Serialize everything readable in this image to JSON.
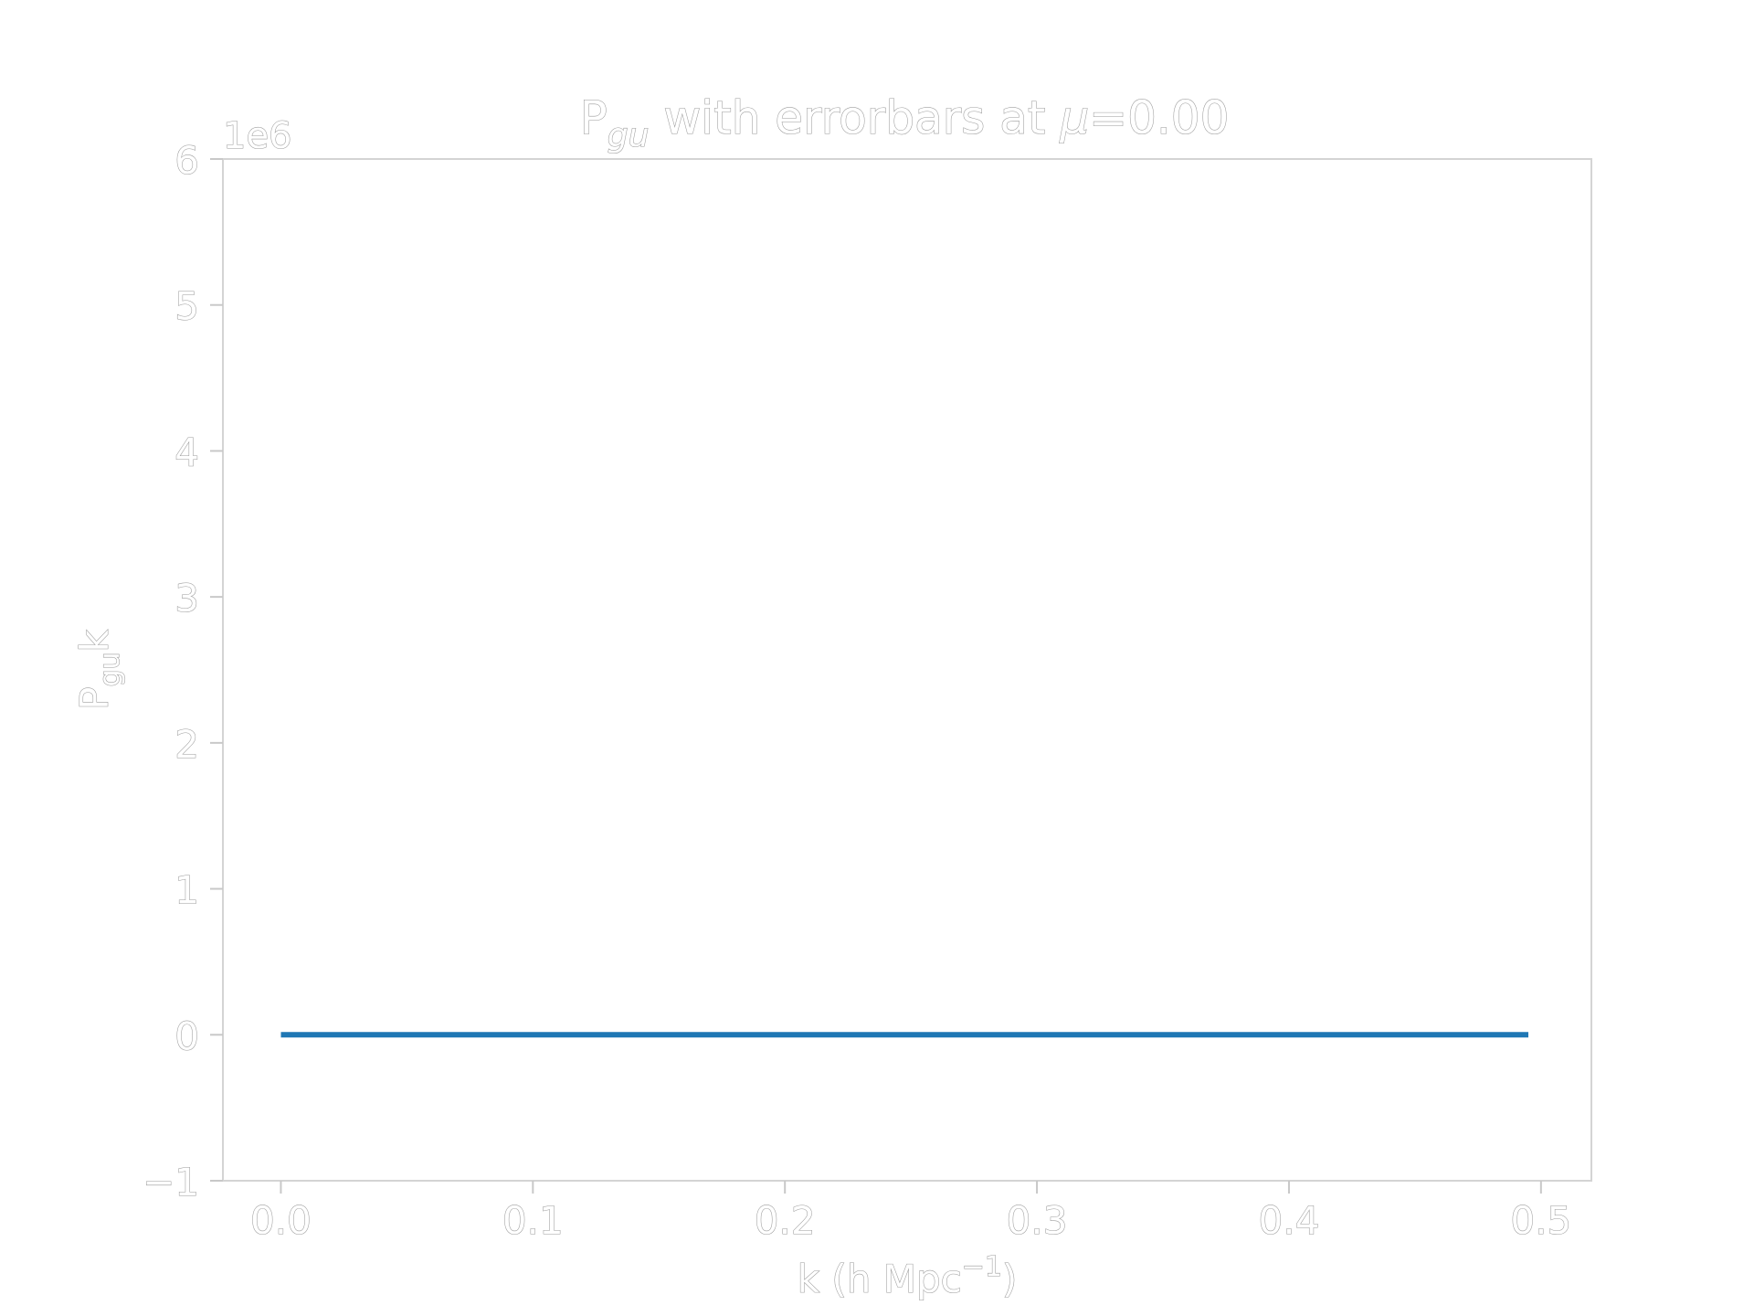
{
  "chart_data": {
    "type": "line",
    "title": {
      "prefix": "P",
      "subscript": "gu",
      "middle": " with errorbars at ",
      "mu": "μ",
      "suffix": "=0.00"
    },
    "xlabel": {
      "text": "k (h Mpc",
      "superscript": "−1",
      "close": ")"
    },
    "ylabel": {
      "prefix": "P",
      "subscript": "gu",
      "suffix": "k"
    },
    "y_offset_label": "1e6",
    "xlim": [
      -0.023,
      0.52
    ],
    "ylim": [
      -1,
      6
    ],
    "x_ticks": [
      0.0,
      0.1,
      0.2,
      0.3,
      0.4,
      0.5
    ],
    "x_tick_labels": [
      "0.0",
      "0.1",
      "0.2",
      "0.3",
      "0.4",
      "0.5"
    ],
    "y_ticks": [
      -1,
      0,
      1,
      2,
      3,
      4,
      5,
      6
    ],
    "y_tick_labels": [
      "−1",
      "0",
      "1",
      "2",
      "3",
      "4",
      "5",
      "6"
    ],
    "grid": false,
    "series": [
      {
        "color": "#1f77b4",
        "x": [
          0.0,
          0.1,
          0.2,
          0.3,
          0.4,
          0.495
        ],
        "y": [
          0,
          0,
          0,
          0,
          0,
          0
        ]
      }
    ]
  }
}
